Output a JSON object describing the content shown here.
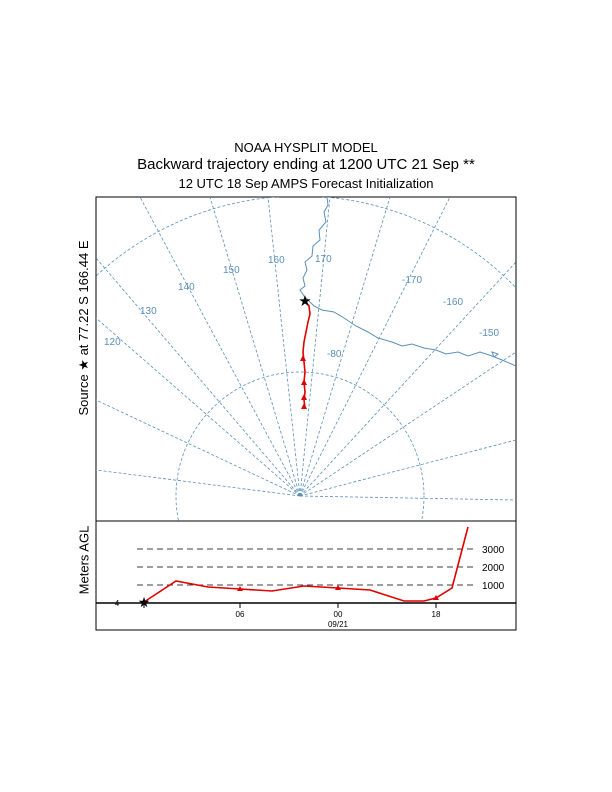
{
  "header": {
    "model": "NOAA HYSPLIT MODEL",
    "trajectory": "Backward trajectory ending at 1200 UTC 21 Sep **",
    "initialization": "12 UTC 18 Sep    AMPS  Forecast Initialization"
  },
  "map": {
    "source_label": "Source ★ at  77.22 S  166.44 E",
    "longitude_labels": [
      "120",
      "130",
      "140",
      "150",
      "160",
      "170",
      "-170",
      "-160",
      "-150"
    ],
    "latitude_labels": [
      "-80"
    ],
    "colors": {
      "graticule": "#5b8fb9",
      "coast": "#5b8fb9",
      "trajectory": "#e00000",
      "frame": "#000000"
    }
  },
  "height_panel": {
    "ylabel": "Meters AGL",
    "levels": [
      "1000",
      "2000",
      "3000"
    ],
    "time_labels": [
      "06",
      "00",
      "18"
    ],
    "date_label": "09/21",
    "start_tick_label": "4"
  }
}
